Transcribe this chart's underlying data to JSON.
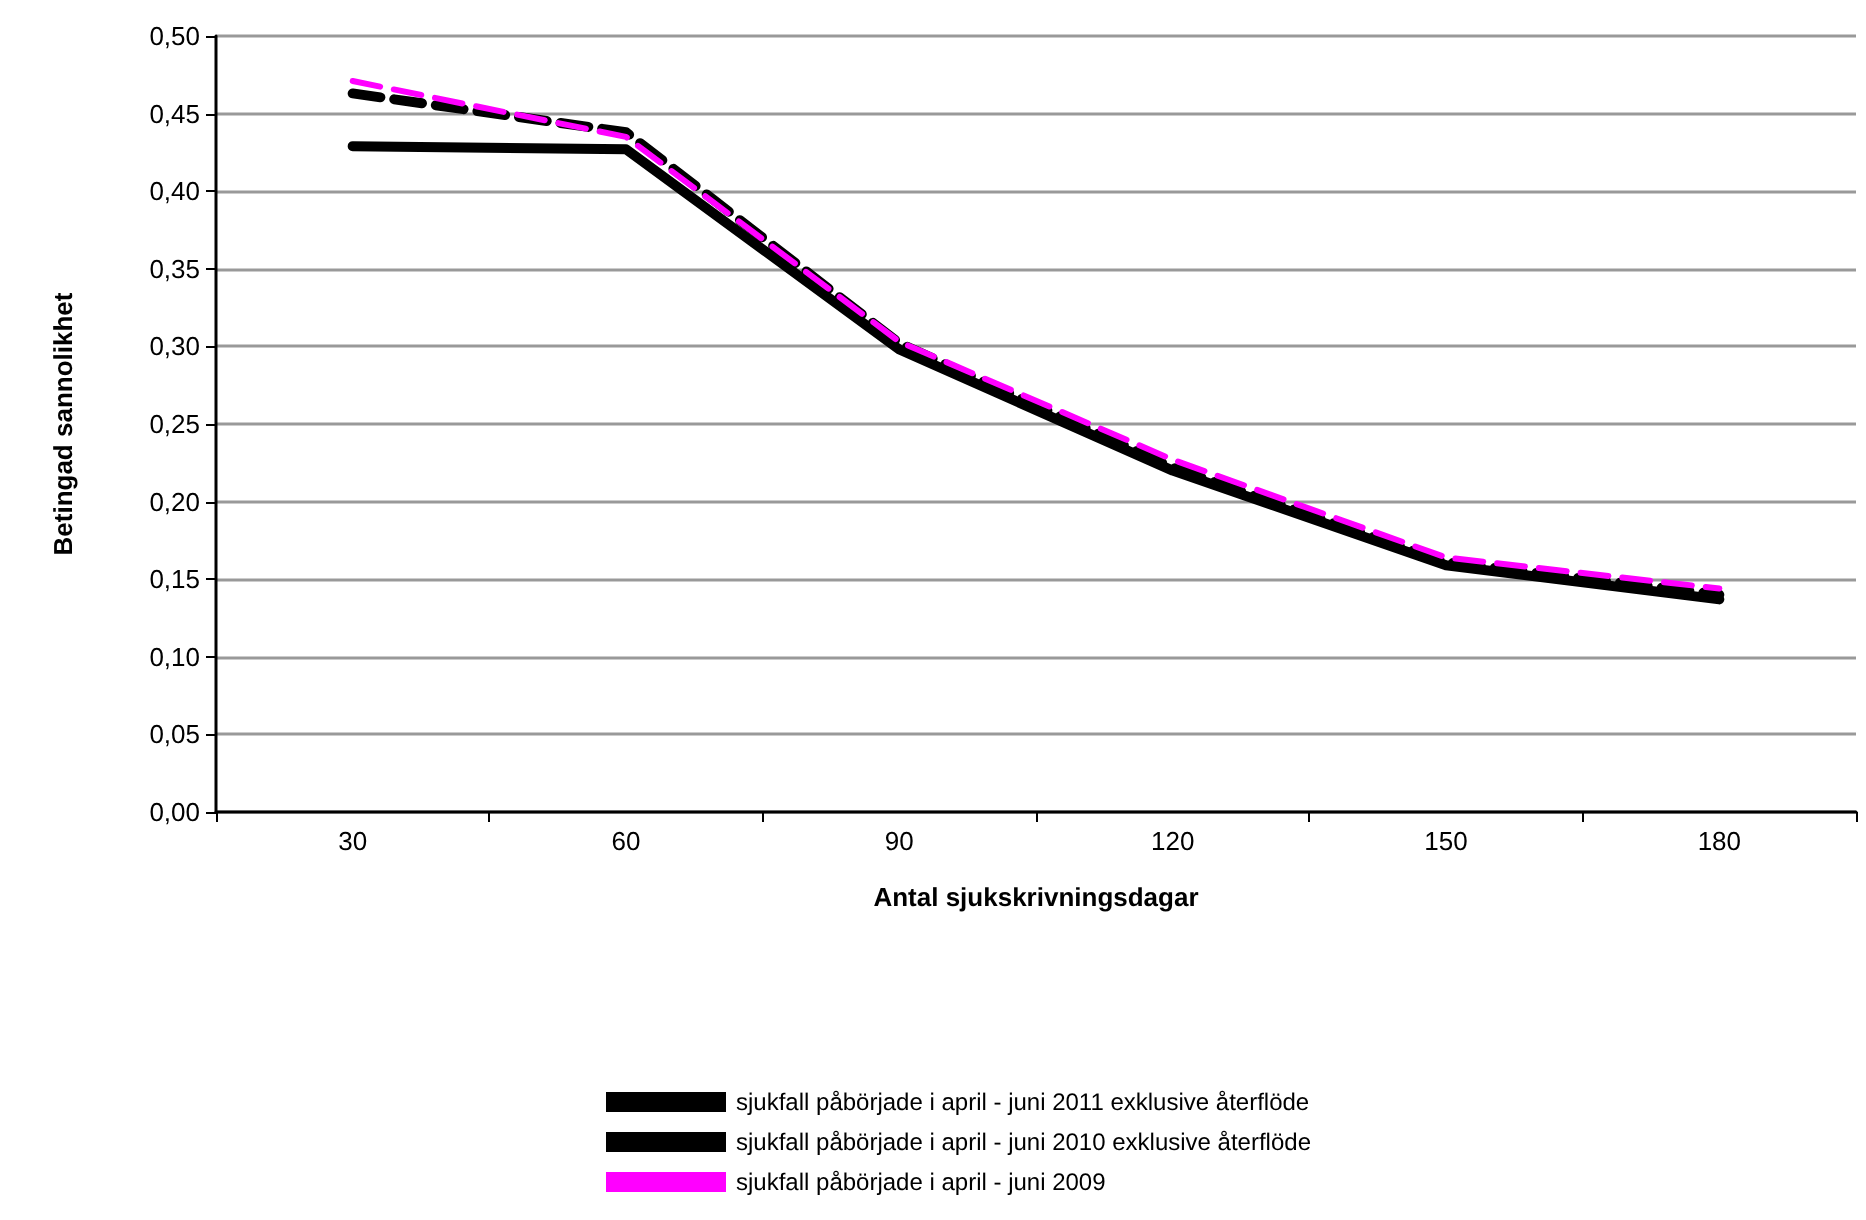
{
  "chart_data": {
    "type": "line",
    "xlabel": "Antal sjukskrivningsdagar",
    "ylabel": "Betingad sannolikhet",
    "categories": [
      "30",
      "60",
      "90",
      "120",
      "150",
      "180"
    ],
    "series": [
      {
        "name": "sjukfall påbörjade i april - juni 2011 exklusive återflöde",
        "color": "#000000",
        "line_style": "solid",
        "values": [
          0.429,
          0.427,
          0.298,
          0.22,
          0.159,
          0.137
        ]
      },
      {
        "name": "sjukfall påbörjade i april - juni 2010 exklusive återflöde",
        "color": "#000000",
        "line_style": "dashed",
        "values": [
          0.463,
          0.438,
          0.302,
          0.222,
          0.161,
          0.14
        ]
      },
      {
        "name": "sjukfall påbörjade i april - juni 2009",
        "color": "#ff00ff",
        "line_style": "dashed",
        "values": [
          0.471,
          0.435,
          0.303,
          0.227,
          0.164,
          0.144
        ]
      }
    ],
    "ylim": [
      0,
      0.5
    ],
    "yticks": [
      {
        "value": 0,
        "label": "0,00"
      },
      {
        "value": 0.05,
        "label": "0,05"
      },
      {
        "value": 0.1,
        "label": "0,10"
      },
      {
        "value": 0.15,
        "label": "0,15"
      },
      {
        "value": 0.2,
        "label": "0,20"
      },
      {
        "value": 0.25,
        "label": "0,25"
      },
      {
        "value": 0.3,
        "label": "0,30"
      },
      {
        "value": 0.35,
        "label": "0,35"
      },
      {
        "value": 0.4,
        "label": "0,40"
      },
      {
        "value": 0.45,
        "label": "0,45"
      },
      {
        "value": 0.5,
        "label": "0,50"
      }
    ],
    "grid": "y",
    "legend": "bottom",
    "marker": "none"
  }
}
